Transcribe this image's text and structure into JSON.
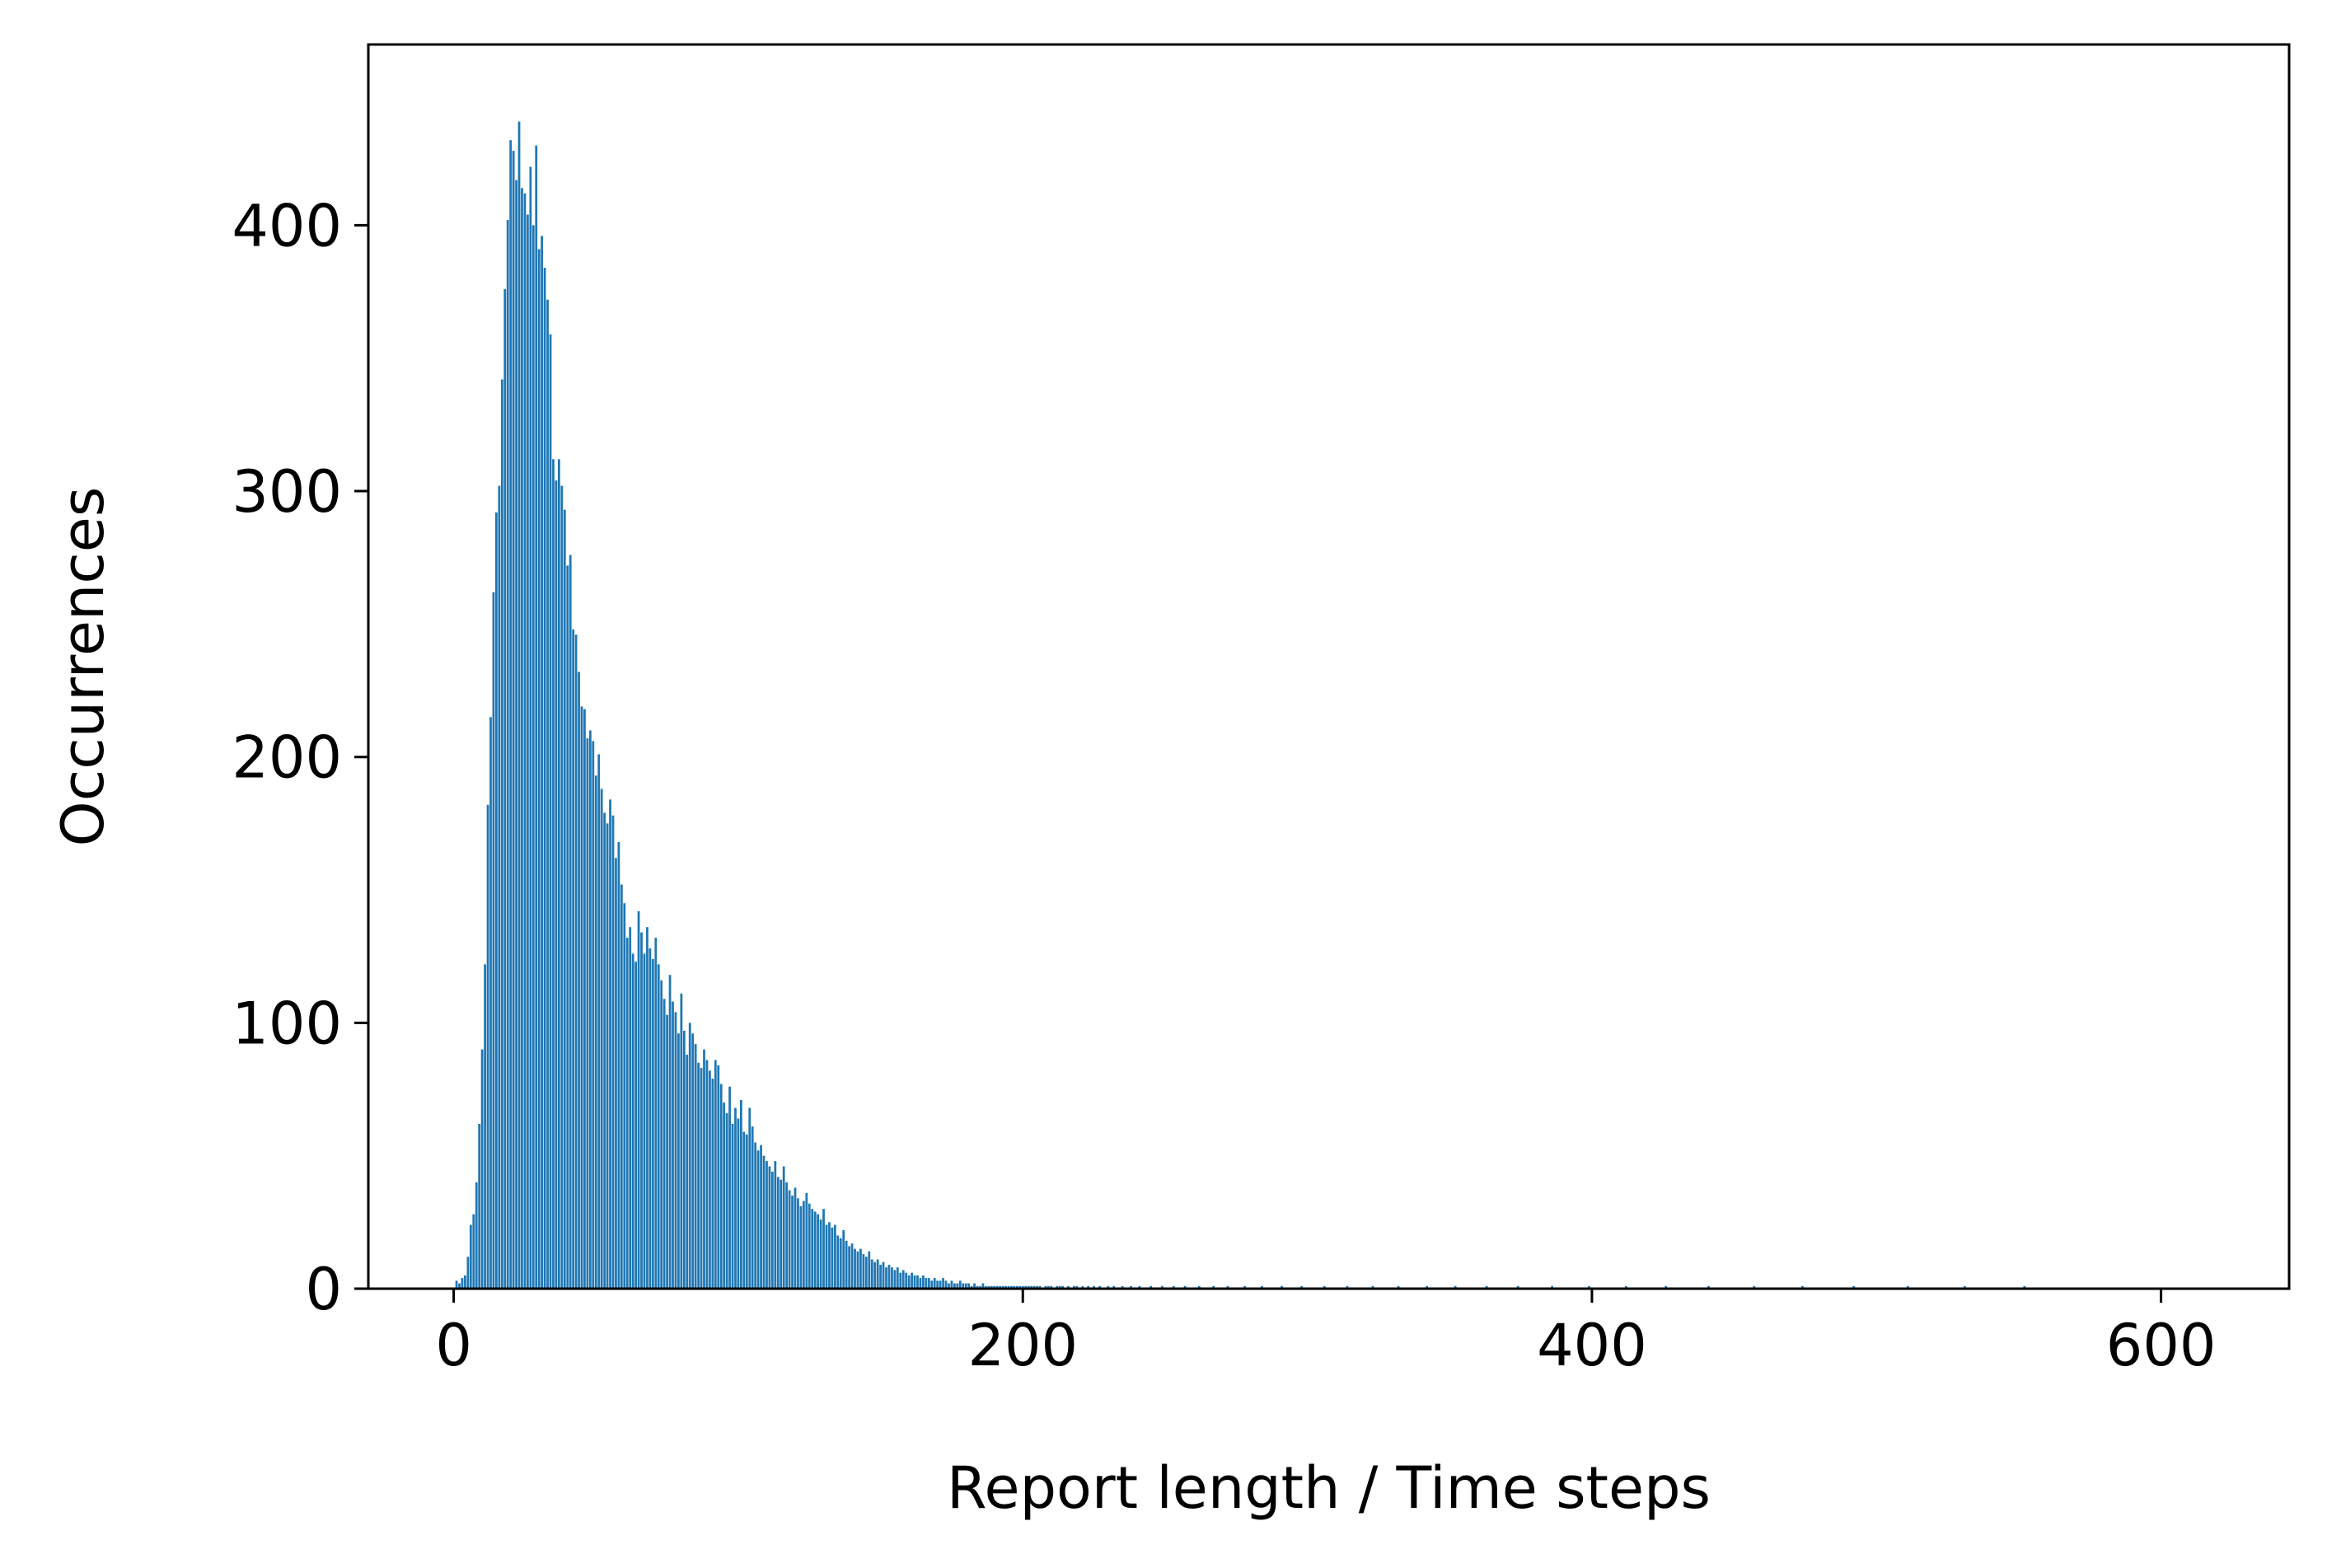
{
  "chart_data": {
    "type": "bar",
    "title": "",
    "xlabel": "Report length / Time steps",
    "ylabel": "Occurrences",
    "xlim": [
      -30,
      645
    ],
    "ylim": [
      0,
      468
    ],
    "xticks": [
      0,
      200,
      400,
      600
    ],
    "yticks": [
      0,
      100,
      200,
      300,
      400
    ],
    "grid": false,
    "legend": "none",
    "bar_color": "#1f77b4",
    "x_start": 1,
    "values": [
      3,
      2,
      4,
      5,
      12,
      24,
      28,
      40,
      62,
      90,
      122,
      182,
      215,
      262,
      292,
      302,
      342,
      376,
      402,
      432,
      428,
      417,
      439,
      414,
      412,
      404,
      422,
      400,
      430,
      391,
      396,
      384,
      372,
      359,
      312,
      304,
      312,
      302,
      293,
      272,
      276,
      248,
      246,
      232,
      219,
      218,
      207,
      210,
      206,
      193,
      201,
      188,
      179,
      175,
      184,
      178,
      162,
      168,
      152,
      145,
      132,
      136,
      126,
      123,
      142,
      134,
      126,
      136,
      128,
      124,
      132,
      122,
      116,
      109,
      103,
      118,
      108,
      104,
      96,
      111,
      97,
      88,
      100,
      96,
      92,
      85,
      83,
      90,
      86,
      82,
      79,
      86,
      84,
      77,
      70,
      66,
      76,
      62,
      68,
      64,
      71,
      59,
      58,
      68,
      61,
      55,
      52,
      54,
      50,
      48,
      46,
      44,
      48,
      42,
      41,
      46,
      40,
      37,
      35,
      38,
      34,
      31,
      33,
      36,
      32,
      30,
      29,
      28,
      26,
      30,
      24,
      25,
      23,
      24,
      20,
      19,
      22,
      18,
      16,
      17,
      15,
      14,
      15,
      13,
      12,
      14,
      11,
      10,
      11,
      9,
      10,
      8,
      9,
      8,
      7,
      8,
      6,
      7,
      6,
      5,
      6,
      5,
      5,
      4,
      5,
      4,
      4,
      3,
      4,
      3,
      3,
      4,
      3,
      2,
      3,
      2,
      2,
      3,
      2,
      2,
      2,
      1,
      2,
      1,
      1,
      2,
      1,
      1,
      1,
      1,
      1,
      1,
      1,
      1,
      1,
      1,
      1,
      1,
      1,
      1,
      1,
      1,
      1,
      1,
      1,
      1,
      0,
      1,
      1,
      1,
      0,
      1,
      1,
      1,
      0,
      1,
      0,
      1,
      1,
      0,
      1,
      0,
      1,
      0,
      1,
      0,
      1,
      0,
      0,
      1,
      0,
      1,
      0,
      0,
      1,
      0,
      0,
      1,
      0,
      0,
      1,
      0,
      0,
      0,
      1,
      0,
      0,
      0,
      1,
      0,
      0,
      0,
      1,
      0,
      0,
      0,
      1,
      0,
      0,
      0,
      0,
      1,
      0,
      0,
      0,
      0,
      1,
      0,
      0,
      0,
      0,
      1,
      0,
      0,
      0,
      0,
      0,
      1,
      0,
      0,
      0,
      0,
      0,
      1,
      0,
      0,
      0,
      0,
      0,
      0,
      1,
      0,
      0,
      0,
      0,
      0,
      0,
      1,
      0,
      0,
      0,
      0,
      0,
      0,
      0,
      1,
      0,
      0,
      0,
      0,
      0,
      0,
      0,
      1,
      0,
      0,
      0,
      0,
      0,
      0,
      0,
      0,
      1,
      0,
      0,
      0,
      0,
      0,
      0,
      0,
      0,
      1,
      0,
      0,
      0,
      0,
      0,
      0,
      0,
      0,
      0,
      1,
      0,
      0,
      0,
      0,
      0,
      0,
      0,
      0,
      0,
      1,
      0,
      0,
      0,
      0,
      0,
      0,
      0,
      0,
      0,
      0,
      1,
      0,
      0,
      0,
      0,
      0,
      0,
      0,
      0,
      0,
      0,
      1,
      0,
      0,
      0,
      0,
      0,
      0,
      0,
      0,
      0,
      0,
      0,
      1,
      0,
      0,
      0,
      0,
      0,
      0,
      0,
      0,
      0,
      0,
      0,
      0,
      1,
      0,
      0,
      0,
      0,
      0,
      0,
      0,
      0,
      0,
      0,
      0,
      0,
      1,
      0,
      0,
      0,
      0,
      0,
      0,
      0,
      0,
      0,
      0,
      0,
      0,
      0,
      1,
      0,
      0,
      0,
      0,
      0,
      0,
      0,
      0,
      0,
      0,
      0,
      0,
      0,
      0,
      1,
      0,
      0,
      0,
      0,
      0,
      0,
      0,
      0,
      0,
      0,
      0,
      0,
      0,
      0,
      0,
      1,
      0,
      0,
      0,
      0,
      0,
      0,
      0,
      0,
      0,
      0,
      0,
      0,
      0,
      0,
      0,
      0,
      1,
      0,
      0,
      0,
      0,
      0,
      0,
      0,
      0,
      0,
      0,
      0,
      0,
      0,
      0,
      0,
      0,
      0,
      1,
      0,
      0,
      0,
      0,
      0,
      0,
      0,
      0,
      0,
      0,
      0,
      0,
      0,
      0,
      0,
      0,
      0,
      0,
      1,
      0,
      0,
      0,
      0,
      0,
      0,
      0,
      0,
      0,
      0,
      0,
      0,
      0,
      0,
      0,
      0,
      0,
      0,
      0,
      1,
      0,
      0,
      0,
      0,
      0,
      0,
      0,
      0,
      0,
      0,
      0,
      0,
      0,
      0,
      0,
      0,
      0,
      0,
      0,
      0,
      1
    ]
  }
}
